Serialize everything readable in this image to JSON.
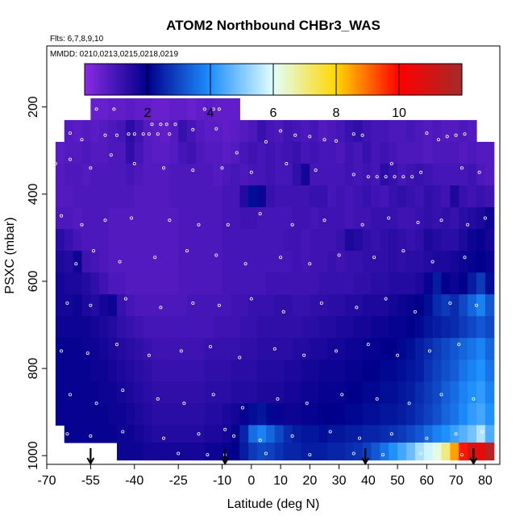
{
  "chart_data": {
    "type": "heatmap",
    "title": "ATOM2 Northbound CHBr3_WAS",
    "notes": [
      "Flts: 6,7,8,9,10",
      "MMDD: 0210,0213,0215,0218,0219"
    ],
    "xlabel": "Latitude (deg N)",
    "ylabel": "PSXC (mbar)",
    "xlim": [
      -70,
      85
    ],
    "ylim": [
      1020,
      60
    ],
    "x_ticks": [
      -70,
      -55,
      -40,
      -25,
      -10,
      0,
      10,
      20,
      30,
      40,
      50,
      60,
      70,
      80
    ],
    "x_tick_labels": [
      "-70",
      "-55",
      "-40",
      "-25",
      "-10",
      "0",
      "10",
      "20",
      "30",
      "40",
      "50",
      "60",
      "70",
      "80"
    ],
    "y_ticks": [
      200,
      400,
      600,
      800,
      1000
    ],
    "y_tick_labels": [
      "200",
      "400",
      "600",
      "800",
      "1000"
    ],
    "colorbar": {
      "range": [
        0,
        12
      ],
      "ticks": [
        2,
        4,
        6,
        8,
        10
      ],
      "tick_labels": [
        "2",
        "4",
        "6",
        "8",
        "10"
      ],
      "colors": [
        "#8a2be2",
        "#00008b",
        "#1e90ff",
        "#e0ffff",
        "#ffd700",
        "#ff0000",
        "#a52a2a"
      ]
    },
    "grid": false,
    "legend": "top colorbar",
    "lat_edges": [
      -67,
      -64,
      -61,
      -58,
      -55,
      -52,
      -49,
      -46,
      -43,
      -40,
      -37,
      -34,
      -31,
      -28,
      -25,
      -22,
      -19,
      -16,
      -13,
      -10,
      -7,
      -4,
      -1,
      2,
      5,
      8,
      11,
      14,
      17,
      20,
      23,
      26,
      29,
      32,
      35,
      38,
      41,
      44,
      47,
      50,
      53,
      56,
      59,
      62,
      65,
      68,
      71,
      74,
      77,
      80,
      83
    ],
    "pressure_edges": [
      180,
      230,
      280,
      330,
      380,
      430,
      480,
      530,
      580,
      630,
      680,
      730,
      780,
      830,
      880,
      930,
      970,
      1010
    ],
    "values": [
      [
        null,
        null,
        null,
        null,
        0.5,
        0.5,
        0.6,
        0.6,
        0.7,
        0.6,
        0.6,
        0.5,
        0.5,
        0.6,
        0.6,
        0.5,
        0.6,
        0.7,
        0.6,
        0.6,
        0.6,
        null,
        null,
        null,
        null,
        null,
        null,
        null,
        null,
        null,
        null,
        null,
        null,
        null,
        null,
        null,
        null,
        null,
        null,
        null,
        null,
        null,
        null,
        null,
        null,
        null,
        null,
        null,
        null,
        null
      ],
      [
        null,
        0.8,
        0.7,
        0.8,
        0.7,
        0.8,
        0.9,
        1.0,
        1.4,
        1.1,
        0.8,
        0.7,
        0.6,
        0.8,
        1.2,
        1.0,
        0.8,
        0.7,
        0.7,
        0.6,
        0.7,
        0.8,
        0.9,
        1.2,
        1.0,
        0.9,
        1.1,
        1.0,
        0.9,
        1.0,
        0.8,
        0.9,
        1.0,
        1.2,
        1.3,
        1.1,
        1.0,
        1.0,
        0.9,
        0.9,
        1.0,
        0.9,
        0.8,
        0.9,
        0.8,
        0.8,
        0.9,
        0.8,
        null,
        null
      ],
      [
        0.7,
        0.8,
        0.8,
        0.9,
        0.8,
        0.8,
        0.9,
        0.9,
        1.3,
        1.0,
        0.8,
        0.7,
        0.7,
        0.8,
        1.0,
        1.1,
        0.9,
        0.8,
        0.8,
        0.7,
        0.8,
        1.0,
        1.1,
        1.0,
        1.1,
        1.0,
        1.1,
        1.2,
        1.0,
        1.1,
        1.0,
        1.0,
        0.9,
        1.1,
        1.0,
        1.2,
        1.0,
        1.1,
        1.0,
        0.9,
        0.9,
        0.9,
        0.8,
        0.9,
        0.9,
        0.9,
        0.8,
        0.9,
        0.8,
        0.8
      ],
      [
        0.8,
        0.9,
        0.9,
        0.8,
        0.9,
        0.9,
        0.9,
        0.9,
        1.0,
        0.9,
        0.8,
        0.8,
        0.8,
        0.9,
        0.9,
        0.9,
        0.9,
        0.9,
        0.8,
        0.9,
        1.0,
        0.9,
        1.0,
        1.0,
        1.1,
        1.0,
        1.0,
        1.3,
        1.7,
        1.0,
        1.0,
        1.0,
        1.0,
        1.1,
        1.0,
        1.1,
        1.0,
        1.4,
        1.2,
        1.0,
        1.1,
        1.2,
        1.1,
        1.0,
        1.0,
        1.0,
        1.0,
        1.1,
        0.9,
        0.8
      ],
      [
        0.8,
        0.8,
        0.9,
        0.9,
        0.9,
        0.9,
        0.9,
        0.9,
        0.9,
        0.8,
        0.8,
        0.8,
        0.8,
        0.9,
        0.9,
        0.9,
        0.9,
        0.9,
        0.9,
        1.0,
        1.0,
        1.5,
        2.2,
        1.8,
        1.2,
        1.1,
        1.1,
        1.1,
        1.1,
        1.2,
        1.2,
        1.0,
        1.1,
        1.0,
        1.1,
        1.2,
        1.1,
        1.0,
        1.2,
        1.3,
        1.2,
        1.1,
        1.3,
        1.2,
        1.1,
        1.6,
        1.2,
        1.1,
        1.2,
        1.1
      ],
      [
        0.9,
        0.9,
        0.8,
        0.9,
        0.9,
        0.9,
        0.8,
        0.8,
        0.8,
        0.8,
        0.8,
        0.8,
        0.8,
        0.8,
        0.9,
        0.9,
        0.9,
        0.9,
        0.9,
        1.0,
        1.0,
        1.1,
        1.1,
        1.0,
        1.0,
        1.0,
        1.0,
        1.1,
        1.1,
        1.0,
        1.1,
        1.1,
        1.1,
        1.0,
        1.1,
        1.1,
        1.2,
        1.2,
        1.2,
        1.1,
        1.1,
        1.2,
        1.3,
        1.2,
        1.3,
        1.2,
        1.4,
        1.5,
        1.6,
        1.8
      ],
      [
        1.4,
        1.2,
        1.0,
        0.9,
        0.9,
        0.9,
        0.8,
        0.8,
        0.8,
        0.8,
        0.8,
        0.8,
        0.8,
        0.8,
        0.9,
        0.9,
        0.9,
        0.9,
        0.9,
        1.0,
        1.0,
        1.0,
        1.0,
        1.0,
        1.0,
        1.0,
        1.1,
        1.1,
        1.0,
        1.1,
        1.1,
        1.1,
        1.2,
        1.6,
        1.5,
        1.3,
        1.2,
        1.3,
        1.4,
        1.3,
        1.2,
        1.3,
        1.6,
        1.5,
        1.4,
        1.4,
        1.6,
        1.8,
        1.9,
        1.7
      ],
      [
        1.6,
        1.5,
        1.8,
        1.1,
        1.0,
        0.9,
        0.8,
        0.8,
        0.8,
        0.8,
        0.8,
        0.8,
        0.8,
        0.8,
        0.9,
        0.9,
        0.9,
        0.9,
        0.9,
        1.0,
        1.0,
        1.0,
        1.0,
        1.0,
        1.0,
        1.0,
        1.0,
        1.1,
        1.0,
        1.1,
        1.1,
        1.2,
        1.1,
        1.2,
        1.2,
        1.3,
        1.3,
        1.3,
        1.4,
        1.3,
        1.4,
        1.4,
        1.5,
        1.6,
        1.6,
        1.7,
        1.8,
        1.9,
        2.0,
        1.9
      ],
      [
        1.7,
        1.6,
        1.6,
        1.5,
        1.3,
        1.1,
        0.9,
        0.9,
        0.8,
        0.8,
        0.8,
        0.8,
        0.8,
        0.8,
        0.9,
        0.9,
        0.9,
        0.9,
        0.9,
        1.0,
        1.0,
        1.0,
        1.0,
        1.0,
        1.1,
        1.1,
        1.1,
        1.1,
        1.1,
        1.1,
        1.2,
        1.2,
        1.2,
        1.2,
        1.3,
        1.3,
        1.4,
        1.4,
        1.5,
        1.5,
        1.5,
        1.6,
        1.9,
        2.4,
        2.0,
        1.8,
        2.0,
        2.4,
        2.8,
        2.2
      ],
      [
        1.7,
        1.7,
        1.8,
        1.6,
        1.5,
        1.7,
        1.8,
        1.2,
        1.0,
        0.9,
        0.9,
        0.9,
        0.9,
        0.9,
        0.9,
        1.0,
        1.0,
        1.0,
        1.0,
        1.0,
        1.1,
        1.1,
        1.2,
        1.2,
        1.2,
        1.3,
        1.3,
        1.2,
        1.2,
        1.3,
        1.3,
        1.4,
        1.4,
        1.5,
        1.5,
        1.6,
        1.6,
        1.6,
        1.7,
        1.8,
        1.9,
        2.0,
        2.2,
        2.6,
        2.8,
        2.6,
        3.0,
        3.4,
        3.8,
        3.2
      ],
      [
        1.8,
        1.8,
        1.8,
        1.8,
        1.7,
        1.6,
        1.5,
        1.3,
        1.2,
        1.1,
        1.0,
        1.0,
        1.0,
        1.0,
        1.0,
        1.0,
        1.0,
        1.0,
        1.1,
        1.1,
        1.1,
        1.2,
        1.2,
        1.3,
        1.3,
        1.3,
        1.3,
        1.3,
        1.4,
        1.4,
        1.5,
        1.5,
        1.6,
        1.6,
        1.7,
        1.7,
        1.8,
        1.8,
        1.9,
        1.9,
        2.0,
        2.1,
        2.3,
        2.4,
        2.5,
        2.6,
        2.8,
        3.0,
        3.2,
        3.0
      ],
      [
        1.9,
        1.9,
        1.9,
        1.8,
        1.8,
        1.7,
        1.6,
        1.5,
        1.4,
        1.3,
        1.2,
        1.1,
        1.1,
        1.1,
        1.1,
        1.1,
        1.1,
        1.2,
        1.2,
        1.2,
        1.2,
        1.3,
        1.3,
        1.4,
        1.4,
        1.4,
        1.4,
        1.5,
        1.5,
        1.6,
        1.6,
        1.7,
        1.7,
        1.8,
        1.8,
        1.9,
        1.9,
        2.0,
        2.0,
        2.1,
        2.2,
        2.4,
        2.6,
        2.8,
        3.0,
        3.2,
        3.4,
        3.6,
        3.8,
        3.4
      ],
      [
        1.9,
        1.9,
        1.9,
        1.9,
        1.8,
        1.8,
        1.7,
        1.6,
        1.5,
        1.4,
        1.3,
        1.2,
        1.2,
        1.2,
        1.2,
        1.2,
        1.2,
        1.3,
        1.3,
        1.3,
        1.4,
        1.4,
        1.4,
        1.5,
        1.5,
        1.5,
        1.6,
        1.6,
        1.7,
        1.7,
        1.8,
        1.8,
        1.8,
        1.9,
        1.9,
        2.0,
        2.0,
        2.1,
        2.1,
        2.2,
        2.3,
        2.4,
        2.7,
        2.9,
        3.1,
        3.3,
        3.6,
        3.8,
        4.0,
        3.6
      ],
      [
        1.9,
        1.9,
        1.9,
        1.9,
        1.9,
        1.8,
        1.8,
        1.7,
        1.6,
        1.5,
        1.4,
        1.3,
        1.3,
        1.3,
        1.3,
        1.3,
        1.3,
        1.4,
        1.4,
        1.4,
        1.5,
        1.5,
        1.5,
        1.6,
        1.6,
        1.6,
        1.7,
        1.7,
        1.8,
        1.8,
        1.9,
        1.9,
        1.9,
        2.0,
        2.0,
        2.1,
        2.1,
        2.2,
        2.2,
        2.3,
        2.4,
        2.6,
        2.8,
        3.0,
        3.3,
        3.5,
        3.8,
        4.0,
        4.2,
        3.8
      ],
      [
        1.9,
        1.9,
        1.9,
        1.9,
        1.9,
        1.9,
        1.8,
        1.8,
        1.7,
        1.6,
        1.5,
        1.4,
        1.4,
        1.4,
        1.4,
        1.4,
        1.4,
        1.5,
        1.5,
        1.6,
        1.7,
        1.9,
        2.2,
        2.3,
        2.1,
        1.9,
        1.8,
        1.8,
        1.9,
        1.9,
        2.0,
        2.0,
        2.0,
        2.1,
        2.1,
        2.2,
        2.2,
        2.3,
        2.3,
        2.4,
        2.5,
        2.7,
        2.9,
        3.1,
        3.4,
        3.6,
        3.9,
        4.2,
        4.4,
        4.0
      ],
      [
        null,
        1.9,
        1.9,
        1.9,
        1.9,
        1.9,
        1.9,
        1.8,
        1.8,
        1.7,
        1.6,
        1.5,
        1.5,
        1.5,
        1.5,
        1.5,
        1.5,
        1.6,
        1.6,
        1.7,
        1.9,
        2.5,
        3.5,
        3.8,
        3.4,
        3.0,
        2.6,
        2.4,
        2.3,
        2.3,
        2.2,
        2.3,
        2.3,
        2.4,
        2.4,
        2.5,
        2.5,
        2.6,
        2.7,
        2.8,
        3.0,
        3.2,
        3.5,
        3.8,
        4.0,
        4.3,
        4.6,
        4.9,
        5.5,
        4.5
      ],
      [
        null,
        null,
        null,
        null,
        null,
        null,
        null,
        1.8,
        1.8,
        1.8,
        1.7,
        1.7,
        1.7,
        1.7,
        1.7,
        1.7,
        1.7,
        1.8,
        1.8,
        1.9,
        2.0,
        2.4,
        2.8,
        3.0,
        2.9,
        2.7,
        2.5,
        2.5,
        2.4,
        2.4,
        2.4,
        2.5,
        2.5,
        2.6,
        2.7,
        2.9,
        3.2,
        3.6,
        4.0,
        4.4,
        4.8,
        5.4,
        5.8,
        6.2,
        7.0,
        8.5,
        9.8,
        11.0,
        10.5,
        11.5
      ]
    ],
    "sample_points": [
      [
        -53,
        205
      ],
      [
        -47,
        205
      ],
      [
        -16,
        205
      ],
      [
        -13,
        205
      ],
      [
        -11,
        205
      ],
      [
        -34,
        240
      ],
      [
        -31,
        240
      ],
      [
        -29,
        240
      ],
      [
        -26,
        240
      ],
      [
        -62,
        260
      ],
      [
        -58,
        275
      ],
      [
        -50,
        265
      ],
      [
        -46,
        265
      ],
      [
        -42,
        262
      ],
      [
        -40,
        262
      ],
      [
        -37,
        262
      ],
      [
        -35,
        262
      ],
      [
        -32,
        262
      ],
      [
        -28,
        262
      ],
      [
        -20,
        252
      ],
      [
        -12,
        250
      ],
      [
        -5,
        305
      ],
      [
        5,
        280
      ],
      [
        10,
        255
      ],
      [
        15,
        265
      ],
      [
        20,
        268
      ],
      [
        25,
        275
      ],
      [
        29,
        278
      ],
      [
        35,
        262
      ],
      [
        38,
        265
      ],
      [
        40,
        360
      ],
      [
        43,
        360
      ],
      [
        46,
        360
      ],
      [
        49,
        360
      ],
      [
        52,
        360
      ],
      [
        55,
        360
      ],
      [
        60,
        260
      ],
      [
        64,
        275
      ],
      [
        67,
        268
      ],
      [
        70,
        265
      ],
      [
        73,
        262
      ],
      [
        -67,
        330
      ],
      [
        -62,
        320
      ],
      [
        -55,
        340
      ],
      [
        -48,
        310
      ],
      [
        -40,
        330
      ],
      [
        -30,
        340
      ],
      [
        -20,
        345
      ],
      [
        -10,
        340
      ],
      [
        0,
        350
      ],
      [
        12,
        330
      ],
      [
        22,
        345
      ],
      [
        35,
        355
      ],
      [
        48,
        330
      ],
      [
        58,
        350
      ],
      [
        72,
        340
      ],
      [
        78,
        350
      ],
      [
        -65,
        450
      ],
      [
        -58,
        470
      ],
      [
        -50,
        460
      ],
      [
        -41,
        455
      ],
      [
        -28,
        460
      ],
      [
        -18,
        470
      ],
      [
        -8,
        470
      ],
      [
        3,
        445
      ],
      [
        14,
        470
      ],
      [
        25,
        460
      ],
      [
        38,
        470
      ],
      [
        47,
        455
      ],
      [
        57,
        465
      ],
      [
        65,
        460
      ],
      [
        74,
        470
      ],
      [
        80,
        455
      ],
      [
        -60,
        560
      ],
      [
        -54,
        530
      ],
      [
        -45,
        555
      ],
      [
        -33,
        545
      ],
      [
        -22,
        530
      ],
      [
        -12,
        540
      ],
      [
        -2,
        560
      ],
      [
        10,
        545
      ],
      [
        20,
        560
      ],
      [
        30,
        540
      ],
      [
        42,
        545
      ],
      [
        52,
        530
      ],
      [
        62,
        555
      ],
      [
        73,
        545
      ],
      [
        -63,
        650
      ],
      [
        -55,
        655
      ],
      [
        -43,
        640
      ],
      [
        -31,
        660
      ],
      [
        -20,
        650
      ],
      [
        -11,
        655
      ],
      [
        0,
        640
      ],
      [
        11,
        670
      ],
      [
        24,
        650
      ],
      [
        36,
        660
      ],
      [
        46,
        640
      ],
      [
        56,
        670
      ],
      [
        68,
        650
      ],
      [
        77,
        655
      ],
      [
        -65,
        760
      ],
      [
        -56,
        765
      ],
      [
        -46,
        745
      ],
      [
        -35,
        770
      ],
      [
        -24,
        760
      ],
      [
        -14,
        750
      ],
      [
        -4,
        775
      ],
      [
        8,
        755
      ],
      [
        18,
        770
      ],
      [
        29,
        760
      ],
      [
        40,
        745
      ],
      [
        50,
        770
      ],
      [
        61,
        760
      ],
      [
        71,
        745
      ],
      [
        -62,
        860
      ],
      [
        -53,
        880
      ],
      [
        -44,
        850
      ],
      [
        -32,
        870
      ],
      [
        -23,
        880
      ],
      [
        -13,
        860
      ],
      [
        -3,
        890
      ],
      [
        9,
        870
      ],
      [
        19,
        880
      ],
      [
        31,
        860
      ],
      [
        43,
        870
      ],
      [
        54,
        880
      ],
      [
        65,
        860
      ],
      [
        76,
        870
      ],
      [
        -63,
        950
      ],
      [
        -55,
        955
      ],
      [
        -44,
        945
      ],
      [
        -30,
        960
      ],
      [
        -18,
        950
      ],
      [
        -9,
        940
      ],
      [
        -6,
        955
      ],
      [
        3,
        965
      ],
      [
        14,
        955
      ],
      [
        27,
        945
      ],
      [
        37,
        960
      ],
      [
        48,
        950
      ],
      [
        60,
        960
      ],
      [
        70,
        950
      ],
      [
        79,
        945
      ],
      [
        -25,
        995
      ],
      [
        -15,
        998
      ],
      [
        -9,
        998
      ],
      [
        5,
        995
      ],
      [
        20,
        998
      ],
      [
        35,
        995
      ],
      [
        45,
        998
      ],
      [
        58,
        995
      ],
      [
        72,
        998
      ]
    ],
    "arrows_at_latitude": [
      -55,
      -9,
      39,
      76
    ]
  }
}
